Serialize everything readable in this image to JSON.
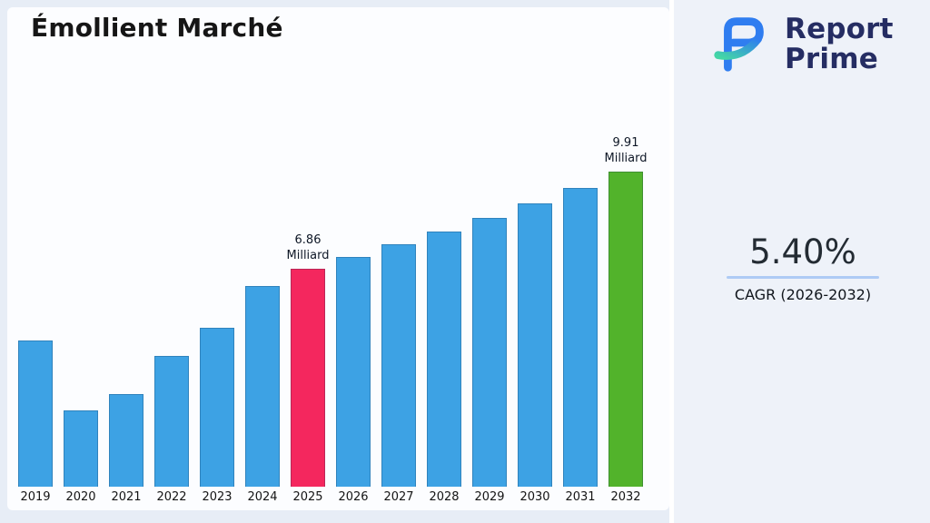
{
  "title": "Émollient Marché",
  "logo": {
    "line1": "Report",
    "line2": "Prime"
  },
  "stats": {
    "cagr_value": "5.40%",
    "cagr_label": "CAGR (2026-2032)"
  },
  "colors": {
    "bar_default": "#3da2e4",
    "bar_highlight_2025": "#f4275e",
    "bar_highlight_2032": "#52b32b",
    "cagr_underline": "#aecbf5",
    "logo_navy": "#252d63",
    "logo_blue": "#2f7df0",
    "logo_teal": "#43d6a6"
  },
  "chart_data": {
    "type": "bar",
    "title": "Émollient Marché",
    "xlabel": "",
    "ylabel": "",
    "unit": "Milliard",
    "categories": [
      "2019",
      "2020",
      "2021",
      "2022",
      "2023",
      "2024",
      "2025",
      "2026",
      "2027",
      "2028",
      "2029",
      "2030",
      "2031",
      "2032"
    ],
    "values": [
      4.6,
      2.4,
      2.9,
      4.1,
      5.0,
      6.3,
      6.86,
      7.23,
      7.62,
      8.03,
      8.47,
      8.92,
      9.4,
      9.91
    ],
    "ylim": [
      0,
      10.5
    ],
    "grid": false,
    "legend": false,
    "highlights": [
      {
        "index": 6,
        "color_key": "bar_highlight_2025"
      },
      {
        "index": 13,
        "color_key": "bar_highlight_2032"
      }
    ],
    "annotations": [
      {
        "index": 6,
        "lines": [
          "6.86",
          "Milliard"
        ]
      },
      {
        "index": 13,
        "lines": [
          "9.91",
          "Milliard"
        ]
      }
    ]
  }
}
